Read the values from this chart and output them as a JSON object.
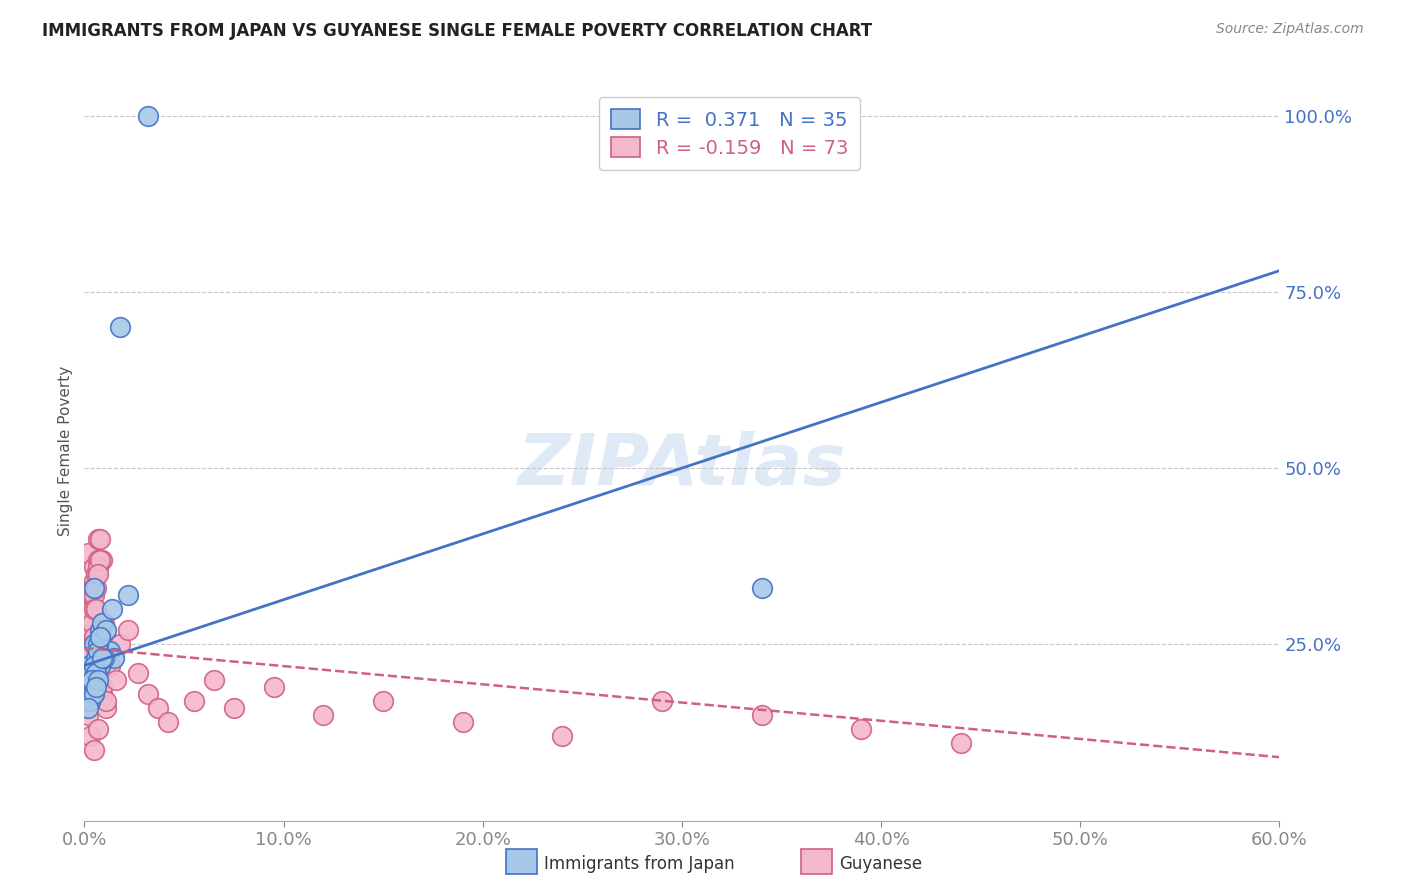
{
  "title": "IMMIGRANTS FROM JAPAN VS GUYANESE SINGLE FEMALE POVERTY CORRELATION CHART",
  "source": "Source: ZipAtlas.com",
  "ylabel": "Single Female Poverty",
  "xlim": [
    0.0,
    0.6
  ],
  "ylim": [
    0.0,
    1.05
  ],
  "xtick_labels": [
    "0.0%",
    "10.0%",
    "20.0%",
    "30.0%",
    "40.0%",
    "50.0%",
    "60.0%"
  ],
  "xtick_vals": [
    0.0,
    0.1,
    0.2,
    0.3,
    0.4,
    0.5,
    0.6
  ],
  "ytick_labels_right": [
    "100.0%",
    "75.0%",
    "50.0%",
    "25.0%"
  ],
  "ytick_vals_right": [
    1.0,
    0.75,
    0.5,
    0.25
  ],
  "blue_R": 0.371,
  "blue_N": 35,
  "pink_R": -0.159,
  "pink_N": 73,
  "blue_color": "#a8c8e8",
  "pink_color": "#f4b8cc",
  "blue_edge": "#4472c4",
  "pink_edge": "#d06080",
  "trend_blue_color": "#4472c4",
  "trend_pink_color": "#d06080",
  "legend_label_blue": "Immigrants from Japan",
  "legend_label_pink": "Guyanese",
  "watermark": "ZIPAtlas",
  "blue_trend_x": [
    0.0,
    0.6
  ],
  "blue_trend_y": [
    0.22,
    0.78
  ],
  "pink_trend_x": [
    0.0,
    0.6
  ],
  "pink_trend_y": [
    0.245,
    0.09
  ],
  "blue_points_x": [
    0.005,
    0.018,
    0.032,
    0.002,
    0.008,
    0.012,
    0.003,
    0.006,
    0.004,
    0.009,
    0.013,
    0.007,
    0.015,
    0.022,
    0.005,
    0.003,
    0.008,
    0.011,
    0.006,
    0.004,
    0.007,
    0.01,
    0.003,
    0.005,
    0.008,
    0.014,
    0.006,
    0.009,
    0.004,
    0.34,
    0.003,
    0.005,
    0.002,
    0.007,
    0.006
  ],
  "blue_points_y": [
    0.25,
    0.7,
    1.0,
    0.22,
    0.27,
    0.24,
    0.21,
    0.23,
    0.2,
    0.28,
    0.24,
    0.25,
    0.23,
    0.32,
    0.33,
    0.19,
    0.22,
    0.27,
    0.22,
    0.18,
    0.24,
    0.23,
    0.17,
    0.22,
    0.26,
    0.3,
    0.21,
    0.23,
    0.2,
    0.33,
    0.17,
    0.18,
    0.16,
    0.2,
    0.19
  ],
  "pink_points_x": [
    0.002,
    0.004,
    0.006,
    0.003,
    0.007,
    0.004,
    0.005,
    0.008,
    0.003,
    0.004,
    0.009,
    0.004,
    0.005,
    0.007,
    0.003,
    0.004,
    0.006,
    0.002,
    0.003,
    0.005,
    0.007,
    0.003,
    0.004,
    0.006,
    0.008,
    0.003,
    0.005,
    0.007,
    0.009,
    0.002,
    0.004,
    0.006,
    0.008,
    0.01,
    0.003,
    0.005,
    0.007,
    0.009,
    0.011,
    0.002,
    0.004,
    0.006,
    0.008,
    0.01,
    0.002,
    0.003,
    0.005,
    0.007,
    0.009,
    0.011,
    0.013,
    0.016,
    0.018,
    0.022,
    0.027,
    0.032,
    0.037,
    0.042,
    0.055,
    0.065,
    0.075,
    0.095,
    0.12,
    0.15,
    0.19,
    0.24,
    0.29,
    0.34,
    0.39,
    0.44,
    0.003,
    0.005,
    0.007
  ],
  "pink_points_y": [
    0.38,
    0.32,
    0.35,
    0.28,
    0.4,
    0.3,
    0.36,
    0.4,
    0.25,
    0.33,
    0.37,
    0.27,
    0.34,
    0.37,
    0.22,
    0.3,
    0.35,
    0.24,
    0.29,
    0.32,
    0.36,
    0.2,
    0.28,
    0.33,
    0.37,
    0.22,
    0.3,
    0.35,
    0.26,
    0.18,
    0.25,
    0.3,
    0.23,
    0.28,
    0.19,
    0.26,
    0.22,
    0.18,
    0.16,
    0.24,
    0.2,
    0.25,
    0.21,
    0.24,
    0.15,
    0.22,
    0.18,
    0.21,
    0.19,
    0.17,
    0.22,
    0.2,
    0.25,
    0.27,
    0.21,
    0.18,
    0.16,
    0.14,
    0.17,
    0.2,
    0.16,
    0.19,
    0.15,
    0.17,
    0.14,
    0.12,
    0.17,
    0.15,
    0.13,
    0.11,
    0.12,
    0.1,
    0.13
  ]
}
